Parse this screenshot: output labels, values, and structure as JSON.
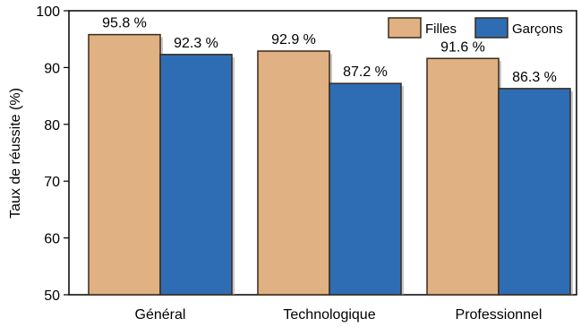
{
  "chart_data": {
    "type": "bar",
    "categories": [
      "Général",
      "Technologique",
      "Professionnel"
    ],
    "series": [
      {
        "name": "Filles",
        "values": [
          95.8,
          92.9,
          91.6
        ],
        "labels": [
          "95.8 %",
          "92.9 %",
          "91.6 %"
        ],
        "color": "#E0B182"
      },
      {
        "name": "Garçons",
        "values": [
          92.3,
          87.2,
          86.3
        ],
        "labels": [
          "92.3 %",
          "87.2 %",
          "86.3 %"
        ],
        "color": "#2E6DB4"
      }
    ],
    "title": "",
    "xlabel": "",
    "ylabel": "Taux de réussite (%)",
    "ylim": [
      50,
      100
    ],
    "yticks": [
      50,
      60,
      70,
      80,
      90,
      100
    ],
    "grid": false,
    "legend_position": "top-right"
  }
}
